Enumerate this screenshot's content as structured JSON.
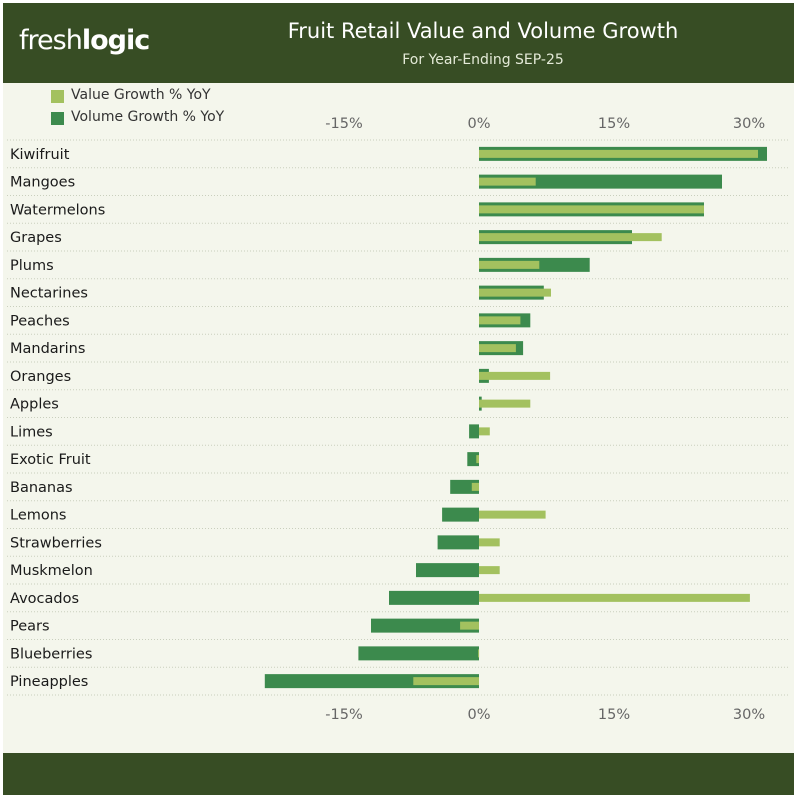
{
  "brand": {
    "logo_light": "fresh",
    "logo_bold": "logic"
  },
  "header": {
    "title": "Fruit Retail Value and Volume Growth",
    "subtitle": "For Year-Ending SEP-25"
  },
  "colors": {
    "header_bg": "#374d24",
    "plot_bg": "#f4f6ec",
    "value_series": "#a3c15f",
    "volume_series": "#3c8a4d"
  },
  "chart_data": {
    "type": "bar",
    "orientation": "horizontal",
    "title": "Fruit Retail Value and Volume Growth",
    "subtitle": "For Year-Ending SEP-25",
    "categories": [
      "Kiwifruit",
      "Mangoes",
      "Watermelons",
      "Grapes",
      "Plums",
      "Nectarines",
      "Peaches",
      "Mandarins",
      "Oranges",
      "Apples",
      "Limes",
      "Exotic Fruit",
      "Bananas",
      "Lemons",
      "Strawberries",
      "Muskmelon",
      "Avocados",
      "Pears",
      "Blueberries",
      "Pineapples"
    ],
    "series": [
      {
        "name": "Volume Growth % YoY",
        "color": "#3c8a4d",
        "values": [
          32,
          27,
          25,
          17,
          12.3,
          7.2,
          5.7,
          4.9,
          1.1,
          0.3,
          -1.1,
          -1.3,
          -3.2,
          -4.1,
          -4.6,
          -7.0,
          -10.0,
          -12.0,
          -13.4,
          -23.8
        ]
      },
      {
        "name": "Value Growth % YoY",
        "color": "#a3c15f",
        "values": [
          31,
          6.3,
          25,
          20.3,
          6.7,
          8.0,
          4.6,
          4.1,
          7.9,
          5.7,
          1.2,
          -0.3,
          -0.8,
          7.4,
          2.3,
          2.3,
          30.1,
          -2.1,
          -0.1,
          -7.3
        ]
      }
    ],
    "xlim": [
      -24,
      32
    ],
    "ticks": [
      -15,
      0,
      15,
      30
    ],
    "tick_labels": [
      "-15%",
      "0%",
      "15%",
      "30%"
    ],
    "grid": {
      "horizontal_row_separators": true,
      "vertical": false
    },
    "legend": {
      "placement": "top-left",
      "entries": [
        "Value Growth % YoY",
        "Volume Growth % YoY"
      ]
    }
  }
}
